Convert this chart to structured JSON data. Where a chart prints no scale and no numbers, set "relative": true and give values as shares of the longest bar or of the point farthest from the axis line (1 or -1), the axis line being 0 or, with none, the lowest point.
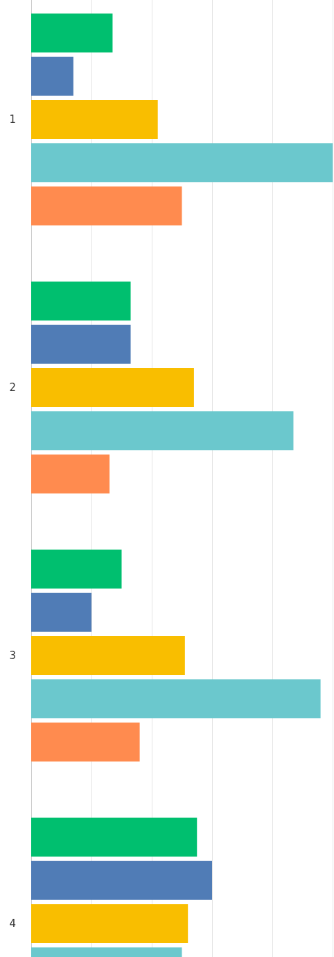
{
  "chart_data": {
    "type": "bar",
    "orientation": "horizontal",
    "relative": true,
    "grid": "x",
    "categories": [
      "1",
      "2",
      "3",
      "4"
    ],
    "series": [
      {
        "color": "#00bf6f",
        "values": [
          0.27,
          0.33,
          0.3,
          0.55
        ]
      },
      {
        "color": "#507cb6",
        "values": [
          0.14,
          0.33,
          0.2,
          0.6
        ]
      },
      {
        "color": "#f9be00",
        "values": [
          0.42,
          0.54,
          0.51,
          0.52
        ]
      },
      {
        "color": "#6bc8cd",
        "values": [
          1.0,
          0.87,
          0.96,
          0.5
        ]
      },
      {
        "color": "#ff8b4f",
        "values": [
          0.5,
          0.26,
          0.36,
          null
        ]
      }
    ]
  }
}
